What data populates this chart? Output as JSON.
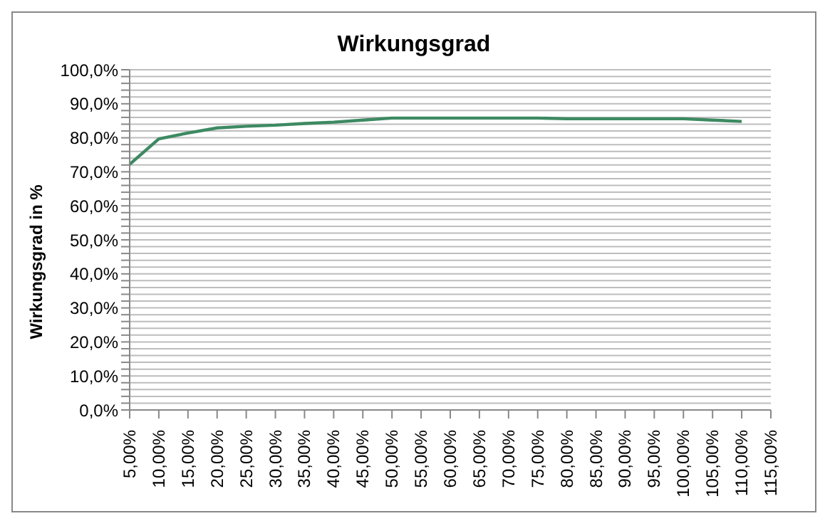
{
  "chart_data": {
    "type": "line",
    "title": "Wirkungsgrad",
    "ylabel": "Wirkungsgrad in %",
    "categories": [
      "5,00%",
      "10,00%",
      "15,00%",
      "20,00%",
      "25,00%",
      "30,00%",
      "35,00%",
      "40,00%",
      "45,00%",
      "50,00%",
      "55,00%",
      "60,00%",
      "65,00%",
      "70,00%",
      "75,00%",
      "80,00%",
      "85,00%",
      "90,00%",
      "95,00%",
      "100,00%",
      "105,00%",
      "110,00%",
      "115,00%"
    ],
    "series": [
      {
        "color": "#3d8a62",
        "values": [
          72.2,
          79.7,
          81.4,
          82.9,
          83.4,
          83.7,
          84.2,
          84.6,
          85.2,
          85.8,
          85.8,
          85.8,
          85.8,
          85.8,
          85.8,
          85.6,
          85.6,
          85.6,
          85.6,
          85.6,
          85.2,
          84.8,
          null
        ]
      }
    ],
    "ylim": [
      0,
      100
    ],
    "yticks": [
      {
        "value": 0,
        "label": "0,0%"
      },
      {
        "value": 2,
        "label": null
      },
      {
        "value": 4,
        "label": null
      },
      {
        "value": 6,
        "label": null
      },
      {
        "value": 8,
        "label": null
      },
      {
        "value": 10,
        "label": "10,0%"
      },
      {
        "value": 12,
        "label": null
      },
      {
        "value": 14,
        "label": null
      },
      {
        "value": 16,
        "label": null
      },
      {
        "value": 18,
        "label": null
      },
      {
        "value": 20,
        "label": "20,0%"
      },
      {
        "value": 22,
        "label": null
      },
      {
        "value": 24,
        "label": null
      },
      {
        "value": 26,
        "label": null
      },
      {
        "value": 28,
        "label": null
      },
      {
        "value": 30,
        "label": "30,0%"
      },
      {
        "value": 32,
        "label": null
      },
      {
        "value": 34,
        "label": null
      },
      {
        "value": 36,
        "label": null
      },
      {
        "value": 38,
        "label": null
      },
      {
        "value": 40,
        "label": "40,0%"
      },
      {
        "value": 42,
        "label": null
      },
      {
        "value": 44,
        "label": null
      },
      {
        "value": 46,
        "label": null
      },
      {
        "value": 48,
        "label": null
      },
      {
        "value": 50,
        "label": "50,0%"
      },
      {
        "value": 52,
        "label": null
      },
      {
        "value": 54,
        "label": null
      },
      {
        "value": 56,
        "label": null
      },
      {
        "value": 58,
        "label": null
      },
      {
        "value": 60,
        "label": "60,0%"
      },
      {
        "value": 62,
        "label": null
      },
      {
        "value": 64,
        "label": null
      },
      {
        "value": 66,
        "label": null
      },
      {
        "value": 68,
        "label": null
      },
      {
        "value": 70,
        "label": "70,0%"
      },
      {
        "value": 72,
        "label": null
      },
      {
        "value": 74,
        "label": null
      },
      {
        "value": 76,
        "label": null
      },
      {
        "value": 78,
        "label": null
      },
      {
        "value": 80,
        "label": "80,0%"
      },
      {
        "value": 82,
        "label": null
      },
      {
        "value": 84,
        "label": null
      },
      {
        "value": 86,
        "label": null
      },
      {
        "value": 88,
        "label": null
      },
      {
        "value": 90,
        "label": "90,0%"
      },
      {
        "value": 92,
        "label": null
      },
      {
        "value": 94,
        "label": null
      },
      {
        "value": 96,
        "label": null
      },
      {
        "value": 98,
        "label": null
      },
      {
        "value": 100,
        "label": "100,0%"
      }
    ],
    "grid": "y",
    "legend": false,
    "marker": "none",
    "line_style": "solid"
  }
}
